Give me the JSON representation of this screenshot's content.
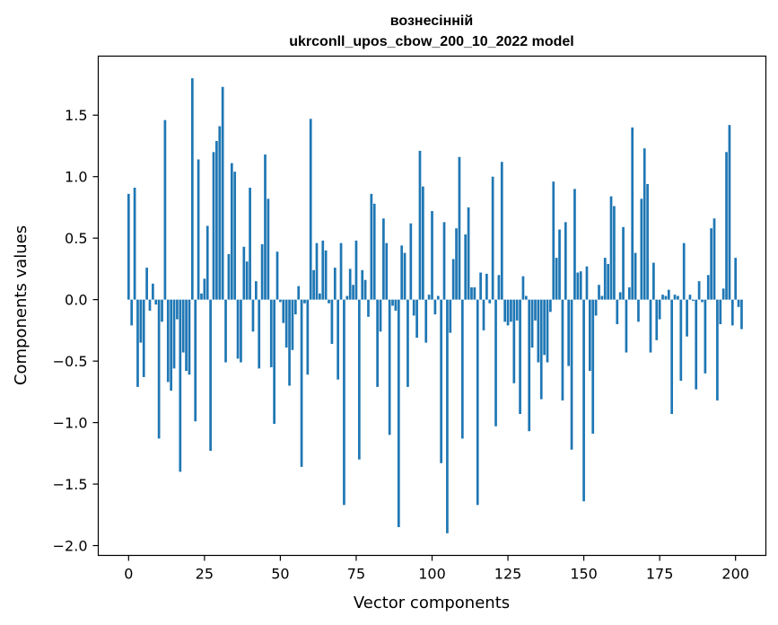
{
  "chart_data": {
    "type": "bar",
    "title_line1": "вознесінній",
    "title_line2": "ukrconll_upos_cbow_200_10_2022 model",
    "xlabel": "Vector components",
    "ylabel": "Components values",
    "xlim": [
      -10,
      210
    ],
    "ylim": [
      -2.08,
      1.98
    ],
    "xticks": [
      0,
      25,
      50,
      75,
      100,
      125,
      150,
      175,
      200
    ],
    "yticks": [
      -2.0,
      -1.5,
      -1.0,
      -0.5,
      0.0,
      0.5,
      1.0,
      1.5
    ],
    "ytick_labels": [
      "−2.0",
      "−1.5",
      "−1.0",
      "−0.5",
      "0.0",
      "0.5",
      "1.0",
      "1.5"
    ],
    "bar_color": "#1f77b4",
    "values": [
      0.86,
      -0.21,
      0.91,
      -0.71,
      -0.35,
      -0.63,
      0.26,
      -0.09,
      0.13,
      -0.04,
      -1.13,
      -0.18,
      1.46,
      -0.67,
      -0.74,
      -0.56,
      -0.16,
      -1.4,
      -0.43,
      -0.58,
      -0.61,
      1.8,
      -0.99,
      1.14,
      0.05,
      0.17,
      0.6,
      -1.23,
      1.2,
      1.29,
      1.41,
      1.73,
      -0.51,
      0.37,
      1.11,
      1.04,
      -0.48,
      -0.51,
      0.43,
      0.31,
      0.91,
      -0.26,
      0.15,
      -0.56,
      0.45,
      1.18,
      0.82,
      -0.55,
      -1.01,
      0.39,
      -0.02,
      -0.19,
      -0.39,
      -0.7,
      -0.41,
      -0.12,
      0.11,
      -1.36,
      -0.03,
      -0.61,
      1.47,
      0.24,
      0.46,
      0.05,
      0.48,
      0.4,
      -0.03,
      -0.36,
      0.26,
      -0.65,
      0.46,
      -1.67,
      0.03,
      0.25,
      0.12,
      0.48,
      -1.3,
      0.24,
      0.16,
      -0.14,
      0.86,
      0.78,
      -0.71,
      -0.26,
      0.66,
      0.46,
      -1.1,
      -0.05,
      -0.09,
      -1.85,
      0.44,
      0.38,
      -0.71,
      0.62,
      -0.13,
      -0.31,
      1.21,
      0.92,
      -0.35,
      0.04,
      0.72,
      -0.12,
      0.03,
      -1.33,
      0.63,
      -1.9,
      -0.27,
      0.33,
      0.58,
      1.16,
      -1.13,
      0.53,
      0.75,
      0.1,
      0.1,
      -1.67,
      0.22,
      -0.25,
      0.21,
      -0.03,
      1.0,
      -1.03,
      0.2,
      1.12,
      -0.18,
      -0.21,
      -0.18,
      -0.68,
      -0.17,
      -0.93,
      0.19,
      0.03,
      -1.07,
      -0.39,
      -0.17,
      -0.51,
      -0.81,
      -0.45,
      -0.51,
      -0.1,
      0.96,
      0.34,
      0.57,
      -0.82,
      0.63,
      -0.54,
      -1.22,
      0.9,
      0.22,
      0.23,
      -1.64,
      0.27,
      -0.58,
      -1.09,
      -0.13,
      0.12,
      0.03,
      0.34,
      0.29,
      0.84,
      0.76,
      -0.2,
      0.06,
      0.59,
      -0.43,
      0.1,
      1.4,
      0.38,
      -0.18,
      0.82,
      1.23,
      0.94,
      -0.43,
      0.3,
      -0.33,
      -0.16,
      0.04,
      0.03,
      0.08,
      -0.93,
      0.04,
      0.03,
      -0.66,
      0.46,
      -0.3,
      0.04,
      -0.01,
      -0.73,
      0.15,
      -0.02,
      -0.6,
      0.2,
      0.58,
      0.66,
      -0.82,
      -0.2,
      0.09,
      1.2,
      1.42,
      -0.21,
      0.34,
      -0.06,
      -0.24
    ]
  }
}
